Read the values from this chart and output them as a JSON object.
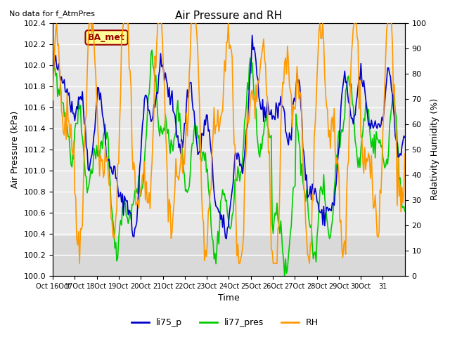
{
  "title": "Air Pressure and RH",
  "subtitle": "No data for f_AtmPres",
  "xlabel": "Time",
  "ylabel_left": "Air Pressure (kPa)",
  "ylabel_right": "Relativity Humidity (%)",
  "ylim_left": [
    100.0,
    102.4
  ],
  "ylim_right": [
    0,
    100
  ],
  "yticks_left": [
    100.0,
    100.2,
    100.4,
    100.6,
    100.8,
    101.0,
    101.2,
    101.4,
    101.6,
    101.8,
    102.0,
    102.2,
    102.4
  ],
  "yticks_right": [
    0,
    10,
    20,
    30,
    40,
    50,
    60,
    70,
    80,
    90,
    100
  ],
  "xtick_labels": [
    "Oct 16Oct",
    "17Oct",
    "18Oct",
    "19Oct",
    "20Oct",
    "21Oct",
    "22Oct",
    "23Oct",
    "24Oct",
    "25Oct",
    "26Oct",
    "27Oct",
    "28Oct",
    "29Oct",
    "30Oct",
    "31"
  ],
  "legend_labels": [
    "li75_p",
    "li77_pres",
    "RH"
  ],
  "line_colors": {
    "li75_p": "#0000cc",
    "li77_pres": "#00cc00",
    "RH": "#ff9900"
  },
  "box_label": "BA_met",
  "box_facecolor": "#ffff99",
  "box_edgecolor": "#990000",
  "box_textcolor": "#990000",
  "n_points": 370
}
